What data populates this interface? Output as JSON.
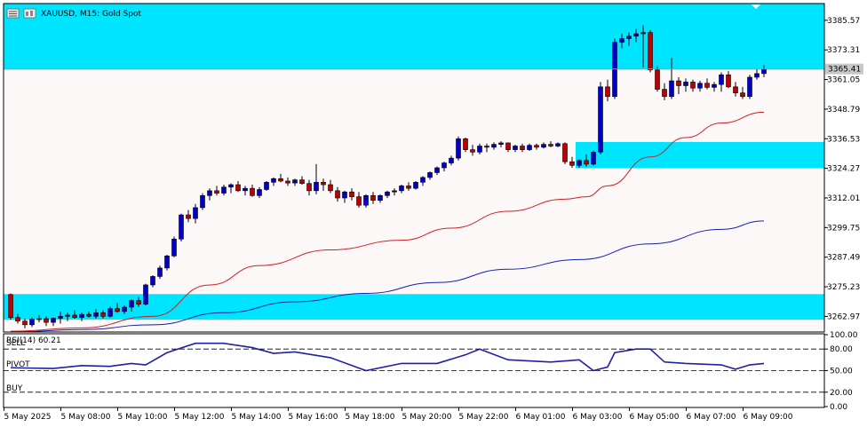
{
  "window": {
    "symbol_title": "XAUUSD, M15:  Gold Spot",
    "current_price_tag": "3365.41"
  },
  "icons": [
    "bars-menu-icon",
    "chart-window-icon"
  ],
  "colors": {
    "zone": "#00e5ff",
    "bull_candle": "#0000c8",
    "bear_candle": "#c00000",
    "ma_fast": "#d02020",
    "ma_slow": "#1020b0",
    "rsi_line": "#1f1fa8",
    "background": "#fdf8f8"
  },
  "price_axis_labels": [
    "3385.57",
    "3373.31",
    "3361.05",
    "3348.79",
    "3336.53",
    "3324.27",
    "3312.01",
    "3299.75",
    "3287.49",
    "3275.23",
    "3262.97"
  ],
  "indicator": {
    "label": "RSI(14) 60.21",
    "level_labels": [
      "SELL",
      "PIVOT",
      "BUY"
    ],
    "axis_labels": [
      "100.00",
      "80.00",
      "50.00",
      "20.00",
      "0.00"
    ]
  },
  "time_axis_labels": [
    "5 May 2025",
    "5 May 08:00",
    "5 May 10:00",
    "5 May 12:00",
    "5 May 14:00",
    "5 May 16:00",
    "5 May 18:00",
    "5 May 20:00",
    "5 May 22:00",
    "6 May 01:00",
    "6 May 03:00",
    "6 May 05:00",
    "6 May 07:00",
    "6 May 09:00"
  ],
  "chart_data": {
    "type": "candlestick",
    "price_range": [
      3256.5,
      3392.5
    ],
    "zones": [
      {
        "from": 3365.2,
        "to": 3392.5
      },
      {
        "from": 3324.3,
        "to": 3335.2
      },
      {
        "from": 3261.6,
        "to": 3272.2
      }
    ],
    "candles": [
      [
        3272.0,
        3272.5,
        3261.5,
        3262.5
      ],
      [
        3262.5,
        3264.0,
        3260.0,
        3261.0
      ],
      [
        3261.0,
        3262.0,
        3258.0,
        3259.5
      ],
      [
        3259.5,
        3262.5,
        3258.5,
        3261.8
      ],
      [
        3261.8,
        3263.5,
        3260.5,
        3262.0
      ],
      [
        3262.0,
        3263.0,
        3259.0,
        3260.5
      ],
      [
        3260.5,
        3262.5,
        3259.0,
        3262.2
      ],
      [
        3262.2,
        3265.0,
        3260.0,
        3263.0
      ],
      [
        3263.0,
        3264.5,
        3261.0,
        3263.5
      ],
      [
        3263.5,
        3265.5,
        3262.0,
        3262.5
      ],
      [
        3262.5,
        3264.5,
        3261.0,
        3263.8
      ],
      [
        3263.8,
        3265.0,
        3262.5,
        3263.0
      ],
      [
        3263.0,
        3266.0,
        3262.0,
        3264.5
      ],
      [
        3264.5,
        3265.5,
        3262.0,
        3263.0
      ],
      [
        3263.0,
        3267.0,
        3262.5,
        3266.2
      ],
      [
        3266.2,
        3268.5,
        3264.5,
        3265.0
      ],
      [
        3265.0,
        3267.5,
        3264.0,
        3266.8
      ],
      [
        3266.8,
        3270.0,
        3265.0,
        3269.5
      ],
      [
        3269.5,
        3271.0,
        3267.0,
        3268.0
      ],
      [
        3268.0,
        3276.5,
        3267.5,
        3276.0
      ],
      [
        3276.0,
        3280.0,
        3275.0,
        3279.5
      ],
      [
        3279.5,
        3284.0,
        3278.5,
        3283.0
      ],
      [
        3283.0,
        3288.5,
        3282.0,
        3288.0
      ],
      [
        3288.0,
        3296.0,
        3287.5,
        3295.0
      ],
      [
        3295.0,
        3305.5,
        3294.0,
        3305.0
      ],
      [
        3305.0,
        3307.0,
        3302.0,
        3303.5
      ],
      [
        3303.5,
        3309.5,
        3301.5,
        3308.0
      ],
      [
        3308.0,
        3314.0,
        3307.0,
        3313.0
      ],
      [
        3313.0,
        3316.0,
        3311.0,
        3315.0
      ],
      [
        3315.0,
        3317.0,
        3313.0,
        3314.0
      ],
      [
        3314.0,
        3317.5,
        3313.0,
        3316.5
      ],
      [
        3316.5,
        3318.0,
        3314.0,
        3317.5
      ],
      [
        3317.5,
        3319.0,
        3314.5,
        3315.0
      ],
      [
        3315.0,
        3317.0,
        3313.0,
        3316.0
      ],
      [
        3316.0,
        3317.5,
        3312.5,
        3313.0
      ],
      [
        3313.0,
        3316.5,
        3312.0,
        3315.5
      ],
      [
        3315.5,
        3319.0,
        3315.0,
        3318.5
      ],
      [
        3318.5,
        3320.5,
        3317.0,
        3320.0
      ],
      [
        3320.0,
        3322.0,
        3318.5,
        3319.0
      ],
      [
        3319.0,
        3320.5,
        3317.0,
        3318.2
      ],
      [
        3318.2,
        3320.0,
        3317.0,
        3319.5
      ],
      [
        3319.5,
        3321.0,
        3317.5,
        3318.0
      ],
      [
        3318.0,
        3319.5,
        3313.0,
        3315.0
      ],
      [
        3315.0,
        3326.0,
        3313.5,
        3318.5
      ],
      [
        3318.5,
        3320.0,
        3315.0,
        3317.5
      ],
      [
        3317.5,
        3319.5,
        3314.0,
        3315.0
      ],
      [
        3315.0,
        3316.5,
        3310.5,
        3312.0
      ],
      [
        3312.0,
        3315.0,
        3310.0,
        3314.5
      ],
      [
        3314.5,
        3316.0,
        3311.0,
        3312.5
      ],
      [
        3312.5,
        3314.5,
        3308.0,
        3309.0
      ],
      [
        3309.0,
        3313.5,
        3308.0,
        3313.0
      ],
      [
        3313.0,
        3314.5,
        3309.5,
        3311.0
      ],
      [
        3311.0,
        3313.5,
        3310.0,
        3313.0
      ],
      [
        3313.0,
        3315.0,
        3312.0,
        3314.5
      ],
      [
        3314.5,
        3316.0,
        3313.0,
        3315.0
      ],
      [
        3315.0,
        3317.5,
        3314.0,
        3317.0
      ],
      [
        3317.0,
        3318.5,
        3315.0,
        3316.0
      ],
      [
        3316.0,
        3319.0,
        3315.5,
        3318.5
      ],
      [
        3318.5,
        3321.0,
        3317.0,
        3320.5
      ],
      [
        3320.5,
        3323.0,
        3319.5,
        3322.5
      ],
      [
        3322.5,
        3325.0,
        3321.5,
        3324.5
      ],
      [
        3324.5,
        3327.0,
        3323.0,
        3326.5
      ],
      [
        3326.5,
        3329.5,
        3325.5,
        3328.5
      ],
      [
        3328.5,
        3337.5,
        3327.5,
        3336.5
      ],
      [
        3336.5,
        3337.0,
        3331.0,
        3332.0
      ],
      [
        3332.0,
        3334.0,
        3329.5,
        3331.0
      ],
      [
        3331.0,
        3334.5,
        3330.0,
        3333.5
      ],
      [
        3333.5,
        3334.5,
        3331.0,
        3333.0
      ],
      [
        3333.0,
        3335.0,
        3332.0,
        3334.2
      ],
      [
        3334.2,
        3335.5,
        3333.0,
        3334.8
      ],
      [
        3334.8,
        3335.0,
        3331.0,
        3332.0
      ],
      [
        3332.0,
        3334.0,
        3331.0,
        3333.5
      ],
      [
        3333.5,
        3334.5,
        3331.0,
        3332.0
      ],
      [
        3332.0,
        3334.5,
        3331.5,
        3333.8
      ],
      [
        3333.8,
        3334.5,
        3332.0,
        3333.0
      ],
      [
        3333.0,
        3335.0,
        3332.5,
        3334.2
      ],
      [
        3334.2,
        3335.5,
        3333.0,
        3333.5
      ],
      [
        3333.5,
        3335.0,
        3333.0,
        3334.5
      ],
      [
        3334.5,
        3335.0,
        3326.0,
        3327.0
      ],
      [
        3327.0,
        3329.0,
        3324.5,
        3325.5
      ],
      [
        3325.5,
        3328.0,
        3324.5,
        3327.5
      ],
      [
        3327.5,
        3330.0,
        3325.0,
        3326.0
      ],
      [
        3326.0,
        3331.5,
        3325.5,
        3331.0
      ],
      [
        3331.0,
        3360.0,
        3330.0,
        3358.0
      ],
      [
        3358.0,
        3361.0,
        3352.0,
        3354.0
      ],
      [
        3354.0,
        3378.0,
        3353.0,
        3376.5
      ],
      [
        3376.5,
        3380.0,
        3374.0,
        3378.0
      ],
      [
        3378.0,
        3380.5,
        3375.0,
        3379.0
      ],
      [
        3379.0,
        3382.0,
        3376.5,
        3380.0
      ],
      [
        3380.0,
        3383.5,
        3366.0,
        3380.5
      ],
      [
        3380.5,
        3381.5,
        3364.0,
        3365.0
      ],
      [
        3365.0,
        3366.5,
        3356.0,
        3357.0
      ],
      [
        3357.0,
        3359.5,
        3352.5,
        3354.0
      ],
      [
        3354.0,
        3370.0,
        3353.0,
        3360.5
      ],
      [
        3360.5,
        3362.0,
        3355.0,
        3358.5
      ],
      [
        3358.5,
        3361.5,
        3356.0,
        3360.0
      ],
      [
        3360.0,
        3361.0,
        3356.0,
        3357.5
      ],
      [
        3357.5,
        3360.5,
        3356.0,
        3359.5
      ],
      [
        3359.5,
        3361.5,
        3357.0,
        3357.8
      ],
      [
        3357.8,
        3360.0,
        3356.0,
        3359.0
      ],
      [
        3359.0,
        3364.0,
        3356.0,
        3363.0
      ],
      [
        3363.0,
        3364.5,
        3357.5,
        3358.0
      ],
      [
        3358.0,
        3360.0,
        3354.0,
        3355.5
      ],
      [
        3355.5,
        3358.0,
        3353.0,
        3354.0
      ],
      [
        3354.0,
        3363.0,
        3353.0,
        3362.0
      ],
      [
        3362.0,
        3365.5,
        3361.0,
        3363.5
      ],
      [
        3363.5,
        3367.0,
        3362.0,
        3365.41
      ]
    ],
    "ma_fast": {
      "x": [
        0,
        10,
        20,
        28,
        35,
        45,
        55,
        62,
        70,
        78,
        81,
        84,
        90,
        95,
        100,
        106
      ],
      "y": [
        3256.8,
        3258.2,
        3263.0,
        3276.0,
        3284.0,
        3290.5,
        3294.5,
        3299.5,
        3306.5,
        3311.5,
        3312.5,
        3317.0,
        3329.0,
        3337.0,
        3343.0,
        3347.5
      ]
    },
    "ma_slow": {
      "x": [
        0,
        10,
        20,
        30,
        40,
        50,
        60,
        70,
        80,
        90,
        100,
        106
      ],
      "y": [
        3256.5,
        3257.5,
        3259.5,
        3264.5,
        3269.0,
        3272.5,
        3277.0,
        3282.5,
        3286.5,
        3293.0,
        3299.0,
        3302.5
      ]
    },
    "rsi": {
      "range": [
        0,
        100
      ],
      "levels": {
        "sell": 80,
        "pivot": 50,
        "buy": 20
      },
      "x": [
        0,
        6,
        10,
        14,
        17,
        19,
        22,
        26,
        30,
        34,
        37,
        40,
        45,
        50,
        55,
        60,
        64,
        66,
        70,
        76,
        80,
        82,
        84,
        85,
        88,
        90,
        92,
        95,
        100,
        102,
        104,
        106
      ],
      "y": [
        54,
        53,
        57,
        56,
        60,
        58,
        75,
        88,
        88,
        82,
        74,
        76,
        68,
        50,
        60,
        60,
        72,
        80,
        65,
        62,
        65,
        50,
        55,
        75,
        80,
        80,
        62,
        60,
        58,
        52,
        58,
        60
      ]
    }
  }
}
